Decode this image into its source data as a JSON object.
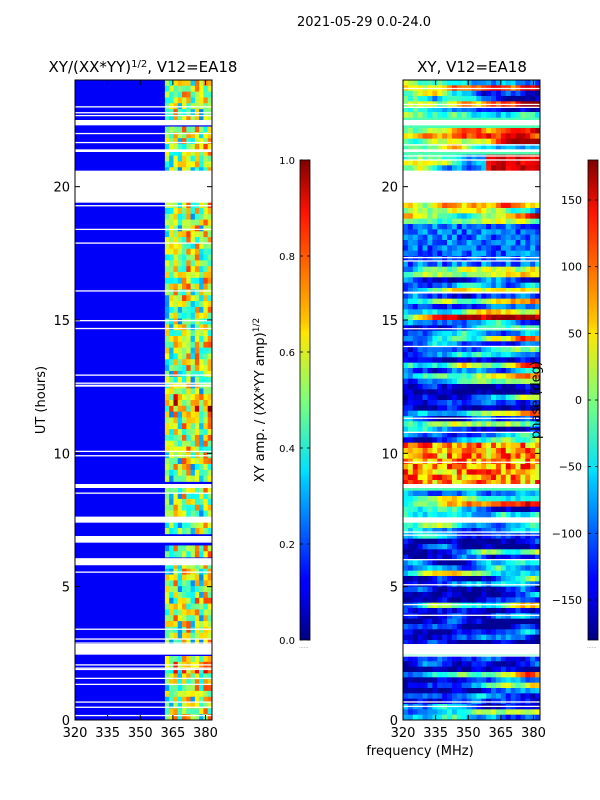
{
  "figure": {
    "suptitle": "2021-05-29 0.0-24.0",
    "xlabel_shared": "frequency (MHz)"
  },
  "chart_data": [
    {
      "type": "heatmap",
      "name": "normalized-amplitude",
      "title_main": "XY/(XX*YY)",
      "title_sup": "1/2",
      "title_rest": ", V12=EA18",
      "xlabel": "",
      "ylabel": "UT (hours)",
      "xlim": [
        320,
        383
      ],
      "ylim": [
        0,
        24
      ],
      "xticks": [
        320,
        335,
        350,
        365,
        380
      ],
      "yticks": [
        0,
        5,
        10,
        15,
        20
      ],
      "colormap": "jet",
      "colorbar": {
        "label_main": "XY amp. / (XX*YY amp)",
        "label_sup": "1/2",
        "range": [
          0.0,
          1.0
        ],
        "ticks": [
          0.0,
          0.2,
          0.4,
          0.6,
          0.8,
          1.0
        ],
        "tick_labels": [
          "0.0",
          "0.2",
          "0.4",
          "0.6",
          "0.8",
          "1.0"
        ],
        "corner_mark": "......"
      },
      "gaps_ut": [
        [
          2.45,
          2.85
        ],
        [
          5.85,
          6.05
        ],
        [
          6.65,
          6.9
        ],
        [
          7.4,
          7.6
        ],
        [
          8.7,
          8.85
        ],
        [
          19.4,
          20.6
        ],
        [
          21.3,
          21.4
        ],
        [
          22.3,
          22.5
        ]
      ],
      "active_band_mhz": [
        361,
        383
      ],
      "background_level": 0.12
    },
    {
      "type": "heatmap",
      "name": "phase",
      "title": "XY, V12=EA18",
      "xlabel": "",
      "ylabel": "",
      "xlim": [
        320,
        383
      ],
      "ylim": [
        0,
        24
      ],
      "xticks": [
        320,
        335,
        350,
        365,
        380
      ],
      "yticks": [
        0,
        5,
        10,
        15,
        20
      ],
      "colormap": "jet",
      "colorbar": {
        "label": "phase (deg)",
        "range": [
          -180,
          180
        ],
        "ticks": [
          150,
          100,
          50,
          0,
          -50,
          -100,
          -150
        ],
        "tick_labels": [
          "150",
          "100",
          "50",
          "0",
          "−50",
          "−100",
          "−150"
        ],
        "corner_mark": "......"
      },
      "gaps_ut": [
        [
          2.45,
          2.85
        ],
        [
          7.4,
          7.6
        ],
        [
          8.7,
          8.85
        ],
        [
          19.4,
          20.6
        ],
        [
          21.3,
          21.4
        ],
        [
          22.3,
          22.5
        ]
      ]
    }
  ]
}
